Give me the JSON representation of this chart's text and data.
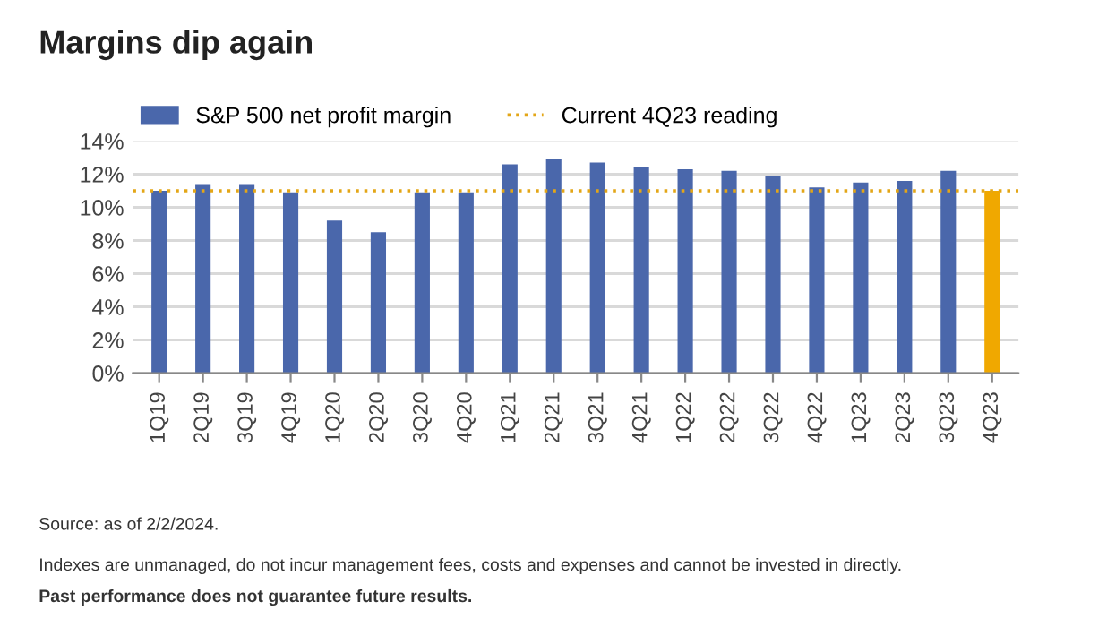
{
  "chart_data": {
    "type": "bar",
    "title": "Margins dip again",
    "categories": [
      "1Q19",
      "2Q19",
      "3Q19",
      "4Q19",
      "1Q20",
      "2Q20",
      "3Q20",
      "4Q20",
      "1Q21",
      "2Q21",
      "3Q21",
      "4Q21",
      "1Q22",
      "2Q22",
      "3Q22",
      "4Q22",
      "1Q23",
      "2Q23",
      "3Q23",
      "4Q23"
    ],
    "series": [
      {
        "name": "S&P 500 net profit margin",
        "color": "#4a67ab",
        "colors": [
          "#4a67ab",
          "#4a67ab",
          "#4a67ab",
          "#4a67ab",
          "#4a67ab",
          "#4a67ab",
          "#4a67ab",
          "#4a67ab",
          "#4a67ab",
          "#4a67ab",
          "#4a67ab",
          "#4a67ab",
          "#4a67ab",
          "#4a67ab",
          "#4a67ab",
          "#4a67ab",
          "#4a67ab",
          "#4a67ab",
          "#4a67ab",
          "#f0a800"
        ],
        "values": [
          11.0,
          11.4,
          11.4,
          10.9,
          9.2,
          8.5,
          10.9,
          10.9,
          12.6,
          12.9,
          12.7,
          12.4,
          12.3,
          12.2,
          11.9,
          11.2,
          11.5,
          11.6,
          12.2,
          11.0
        ]
      }
    ],
    "ref_lines": [
      {
        "axis": "y",
        "value": 11.0,
        "label": "Current 4Q23 reading",
        "color": "#e3a617",
        "line_style": "dotted"
      }
    ],
    "ylim": [
      0,
      14
    ],
    "yticks": [
      {
        "value": 0,
        "label": "0%"
      },
      {
        "value": 2,
        "label": "2%"
      },
      {
        "value": 4,
        "label": "4%"
      },
      {
        "value": 6,
        "label": "6%"
      },
      {
        "value": 8,
        "label": "8%"
      },
      {
        "value": 10,
        "label": "10%"
      },
      {
        "value": 12,
        "label": "12%"
      },
      {
        "value": 14,
        "label": "14%"
      }
    ],
    "grid": "y",
    "legend": "top",
    "annotations": [
      "Source: as of 2/2/2024.",
      "Indexes are unmanaged, do not incur management fees, costs and expenses and cannot be invested in directly.",
      "Past performance does not guarantee future results."
    ]
  }
}
